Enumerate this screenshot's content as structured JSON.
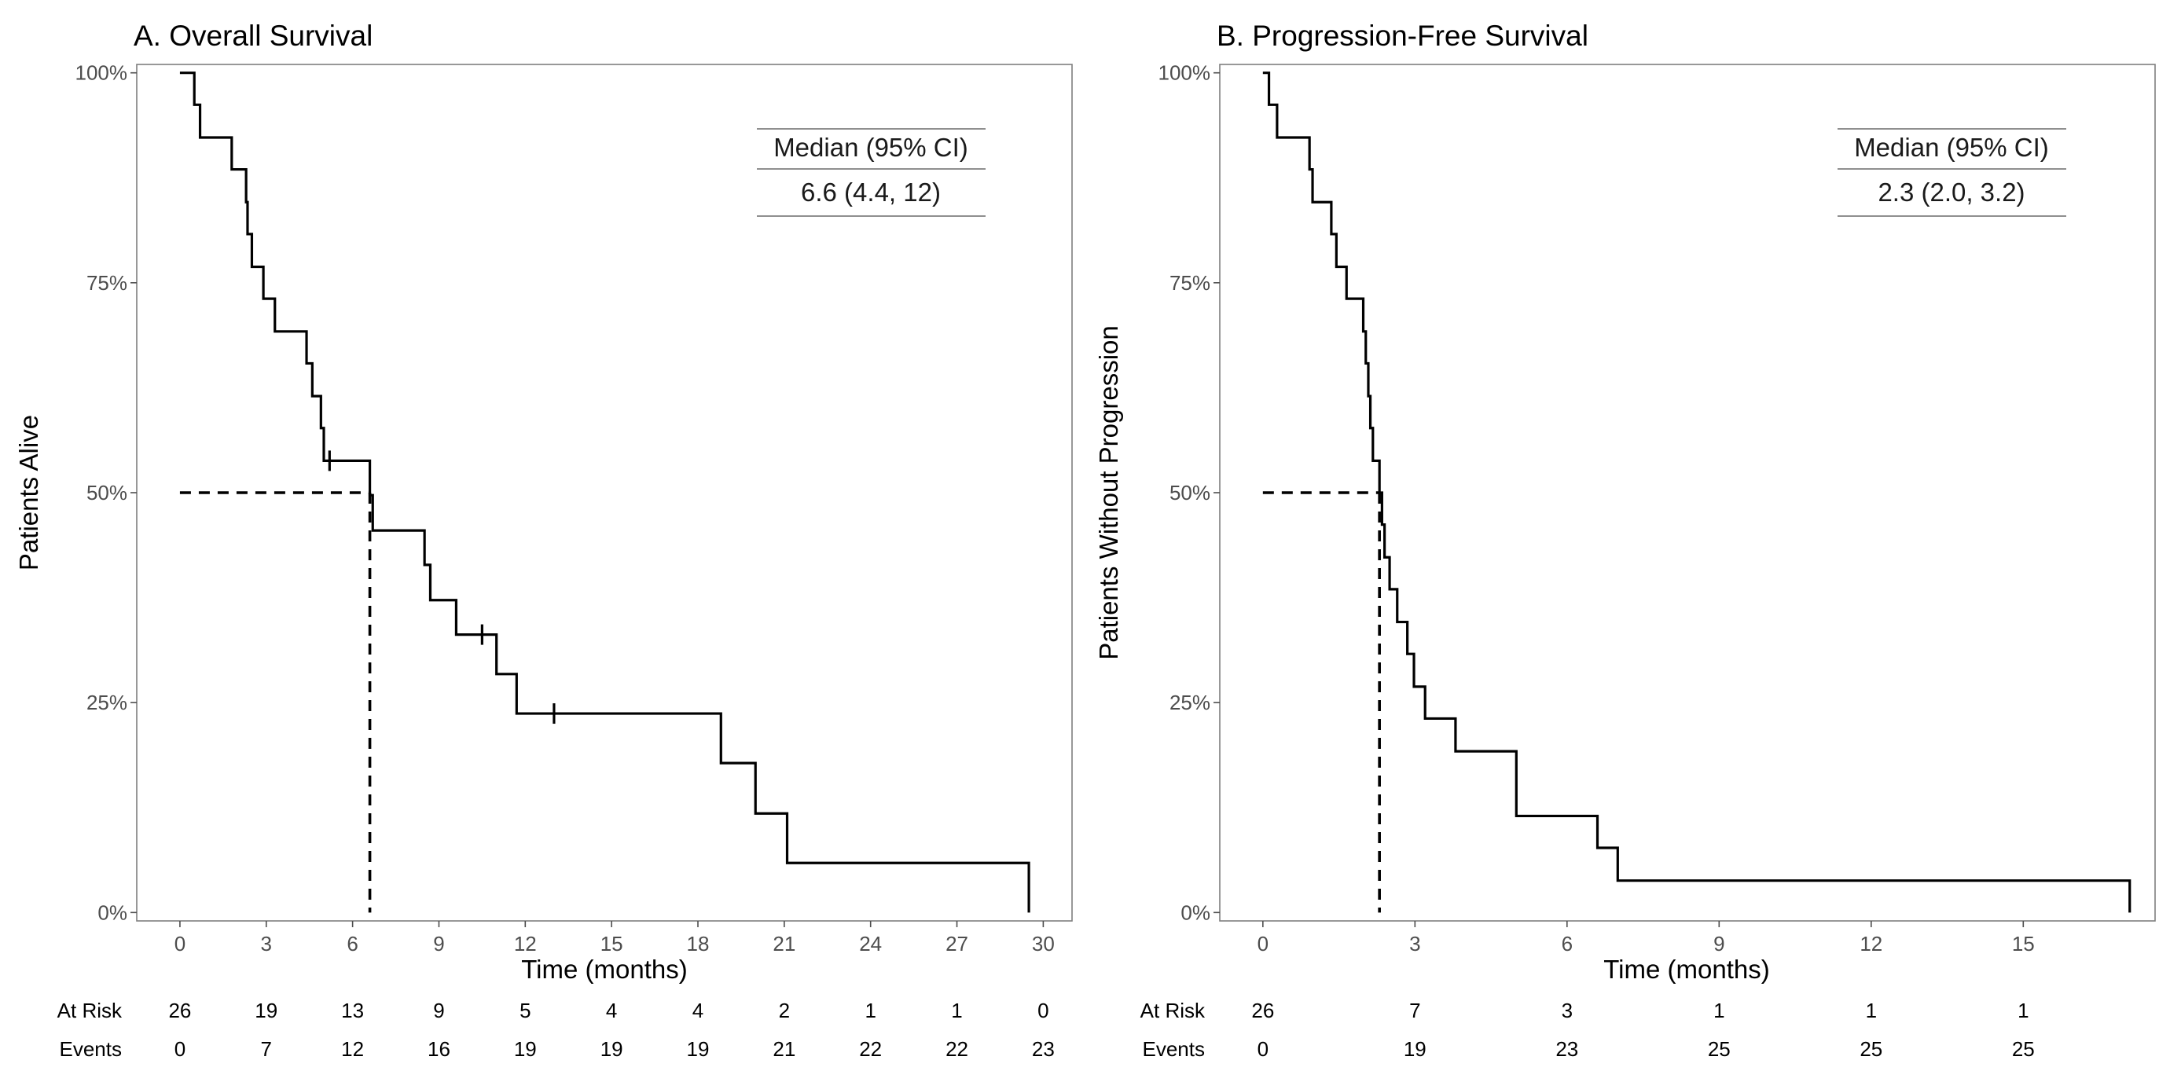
{
  "chart_data": [
    {
      "type": "line",
      "subtype": "kaplan-meier",
      "title": "A. Overall Survival",
      "xlabel": "Time (months)",
      "ylabel": "Patients Alive",
      "xlim": [
        -1.5,
        31.0
      ],
      "ylim": [
        -0.01,
        1.01
      ],
      "x_ticks": [
        0,
        3,
        6,
        9,
        12,
        15,
        18,
        21,
        24,
        27,
        30
      ],
      "y_ticks": [
        0,
        0.25,
        0.5,
        0.75,
        1.0
      ],
      "y_tick_labels": [
        "0%",
        "25%",
        "50%",
        "75%",
        "100%"
      ],
      "steps": [
        {
          "t": 0.0,
          "s": 1.0
        },
        {
          "t": 0.5,
          "s": 0.962
        },
        {
          "t": 0.7,
          "s": 0.923
        },
        {
          "t": 1.8,
          "s": 0.885
        },
        {
          "t": 2.3,
          "s": 0.846
        },
        {
          "t": 2.35,
          "s": 0.808
        },
        {
          "t": 2.5,
          "s": 0.769
        },
        {
          "t": 2.9,
          "s": 0.731
        },
        {
          "t": 3.3,
          "s": 0.692
        },
        {
          "t": 4.4,
          "s": 0.654
        },
        {
          "t": 4.6,
          "s": 0.615
        },
        {
          "t": 4.9,
          "s": 0.577
        },
        {
          "t": 5.0,
          "s": 0.538
        },
        {
          "t": 6.6,
          "s": 0.497
        },
        {
          "t": 6.7,
          "s": 0.455
        },
        {
          "t": 8.5,
          "s": 0.414
        },
        {
          "t": 8.7,
          "s": 0.372
        },
        {
          "t": 9.6,
          "s": 0.331
        },
        {
          "t": 11.0,
          "s": 0.284
        },
        {
          "t": 11.7,
          "s": 0.237
        },
        {
          "t": 18.8,
          "s": 0.178
        },
        {
          "t": 20.0,
          "s": 0.118
        },
        {
          "t": 21.1,
          "s": 0.059
        },
        {
          "t": 29.5,
          "s": 0.0
        }
      ],
      "censor_marks": [
        {
          "t": 5.2,
          "s": 0.538
        },
        {
          "t": 10.5,
          "s": 0.331
        },
        {
          "t": 13.0,
          "s": 0.237
        }
      ],
      "median_line": {
        "x": 6.6,
        "y": 0.5
      },
      "legend": {
        "header": "Median (95% CI)",
        "value": "6.6 (4.4, 12)",
        "position": "top-right"
      },
      "table": {
        "row_labels": [
          "At Risk",
          "Events"
        ],
        "times": [
          0,
          3,
          6,
          9,
          12,
          15,
          18,
          21,
          24,
          27,
          30
        ],
        "at_risk": [
          "26",
          "19",
          "13",
          "9",
          "5",
          "4",
          "4",
          "2",
          "1",
          "1",
          "0"
        ],
        "events": [
          "0",
          "7",
          "12",
          "16",
          "19",
          "19",
          "19",
          "21",
          "22",
          "22",
          "23"
        ]
      }
    },
    {
      "type": "line",
      "subtype": "kaplan-meier",
      "title": "B. Progression-Free Survival",
      "xlabel": "Time (months)",
      "ylabel": "Patients Without Progression",
      "xlim": [
        -0.85,
        17.6
      ],
      "ylim": [
        -0.01,
        1.01
      ],
      "x_ticks": [
        0,
        3,
        6,
        9,
        12,
        15
      ],
      "y_ticks": [
        0,
        0.25,
        0.5,
        0.75,
        1.0
      ],
      "y_tick_labels": [
        "0%",
        "25%",
        "50%",
        "75%",
        "100%"
      ],
      "steps": [
        {
          "t": 0.0,
          "s": 1.0
        },
        {
          "t": 0.12,
          "s": 0.962
        },
        {
          "t": 0.28,
          "s": 0.923
        },
        {
          "t": 0.92,
          "s": 0.885
        },
        {
          "t": 0.98,
          "s": 0.846
        },
        {
          "t": 1.35,
          "s": 0.808
        },
        {
          "t": 1.45,
          "s": 0.769
        },
        {
          "t": 1.65,
          "s": 0.731
        },
        {
          "t": 1.98,
          "s": 0.692
        },
        {
          "t": 2.03,
          "s": 0.654
        },
        {
          "t": 2.08,
          "s": 0.615
        },
        {
          "t": 2.12,
          "s": 0.577
        },
        {
          "t": 2.17,
          "s": 0.538
        },
        {
          "t": 2.3,
          "s": 0.5
        },
        {
          "t": 2.35,
          "s": 0.462
        },
        {
          "t": 2.4,
          "s": 0.423
        },
        {
          "t": 2.5,
          "s": 0.385
        },
        {
          "t": 2.65,
          "s": 0.346
        },
        {
          "t": 2.85,
          "s": 0.308
        },
        {
          "t": 2.98,
          "s": 0.269
        },
        {
          "t": 3.2,
          "s": 0.231
        },
        {
          "t": 3.8,
          "s": 0.192
        },
        {
          "t": 5.0,
          "s": 0.115
        },
        {
          "t": 6.6,
          "s": 0.077
        },
        {
          "t": 7.0,
          "s": 0.038
        },
        {
          "t": 17.1,
          "s": 0.0
        }
      ],
      "censor_marks": [],
      "median_line": {
        "x": 2.3,
        "y": 0.5
      },
      "legend": {
        "header": "Median (95% CI)",
        "value": "2.3 (2.0, 3.2)",
        "position": "top-right"
      },
      "table": {
        "row_labels": [
          "At Risk",
          "Events"
        ],
        "times": [
          0,
          3,
          6,
          9,
          12,
          15
        ],
        "at_risk": [
          "26",
          "7",
          "3",
          "1",
          "1",
          "1"
        ],
        "events": [
          "0",
          "19",
          "23",
          "25",
          "25",
          "25"
        ]
      }
    }
  ]
}
